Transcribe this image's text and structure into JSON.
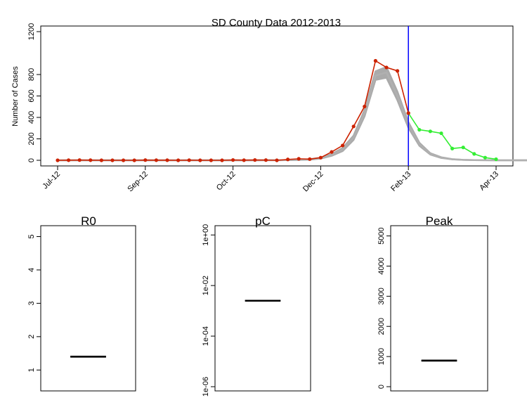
{
  "chart_data": [
    {
      "type": "line",
      "title": "SD County Data 2012-2013",
      "ylabel": "Number of Cases",
      "ylim": [
        0,
        1200
      ],
      "yticks": [
        "0",
        "200",
        "400",
        "600",
        "800",
        "1200"
      ],
      "xticks": [
        "Jul-12",
        "Sep-12",
        "Oct-12",
        "Dec-12",
        "Feb-13",
        "Apr-13"
      ],
      "xtick_weeks": [
        0,
        8,
        16,
        24,
        32,
        40
      ],
      "vline_week": 32,
      "vline_color": "#0000ff",
      "series": [
        {
          "role": "observed-fit-period",
          "color": "#cc2200",
          "weeks": [
            0,
            1,
            2,
            3,
            4,
            5,
            6,
            7,
            8,
            9,
            10,
            11,
            12,
            13,
            14,
            15,
            16,
            17,
            18,
            19,
            20,
            21,
            22,
            23,
            24,
            25,
            26,
            27,
            28,
            29,
            30,
            31,
            32
          ],
          "values": [
            0,
            1,
            2,
            1,
            0,
            0,
            0,
            0,
            2,
            1,
            1,
            0,
            1,
            0,
            0,
            0,
            3,
            1,
            3,
            2,
            0,
            8,
            14,
            11,
            25,
            78,
            138,
            316,
            502,
            928,
            866,
            834,
            440
          ]
        },
        {
          "role": "observed-forecast-period",
          "color": "#33ee33",
          "weeks": [
            32,
            33,
            34,
            35,
            36,
            37,
            38,
            39,
            40
          ],
          "values": [
            440,
            285,
            270,
            252,
            110,
            120,
            60,
            25,
            10
          ]
        },
        {
          "role": "model-simulations",
          "color": "#aaaaaa",
          "weeks": [
            0,
            4,
            8,
            12,
            16,
            18,
            20,
            21,
            22,
            23,
            24,
            25,
            26,
            27,
            28,
            29,
            30,
            31,
            32,
            33,
            34,
            35,
            36,
            37,
            38,
            39,
            40,
            41,
            42,
            43
          ],
          "values": [
            0,
            0,
            0,
            0,
            0,
            0,
            1,
            2,
            4,
            8,
            20,
            50,
            100,
            210,
            440,
            790,
            820,
            600,
            330,
            150,
            60,
            25,
            10,
            4,
            2,
            1,
            0,
            0,
            0,
            0
          ],
          "band_width": [
            0,
            0,
            0,
            0,
            0,
            0,
            0,
            0,
            1,
            2,
            4,
            8,
            14,
            20,
            30,
            40,
            50,
            40,
            26,
            14,
            6,
            3,
            1,
            0,
            0,
            0,
            0,
            0,
            0,
            0
          ]
        }
      ]
    },
    {
      "type": "boxplot",
      "title": "R0",
      "ylim": [
        0.5,
        5.2
      ],
      "yticks": [
        "1",
        "2",
        "3",
        "4",
        "5"
      ],
      "median": 1.4,
      "q1": 1.38,
      "q3": 1.42
    },
    {
      "type": "boxplot",
      "title": "pC",
      "log_scale": true,
      "ylim_log10": [
        -6,
        0.2
      ],
      "yticks": [
        "1e-06",
        "1e-04",
        "1e-02",
        "1e+00"
      ],
      "median_log10": -2.6,
      "q1_log10": -2.62,
      "q3_log10": -2.58
    },
    {
      "type": "boxplot",
      "title": "Peak",
      "ylim": [
        0,
        5200
      ],
      "yticks": [
        "0",
        "1000",
        "2000",
        "3000",
        "4000",
        "5000"
      ],
      "median": 865,
      "q1": 845,
      "q3": 885
    }
  ]
}
